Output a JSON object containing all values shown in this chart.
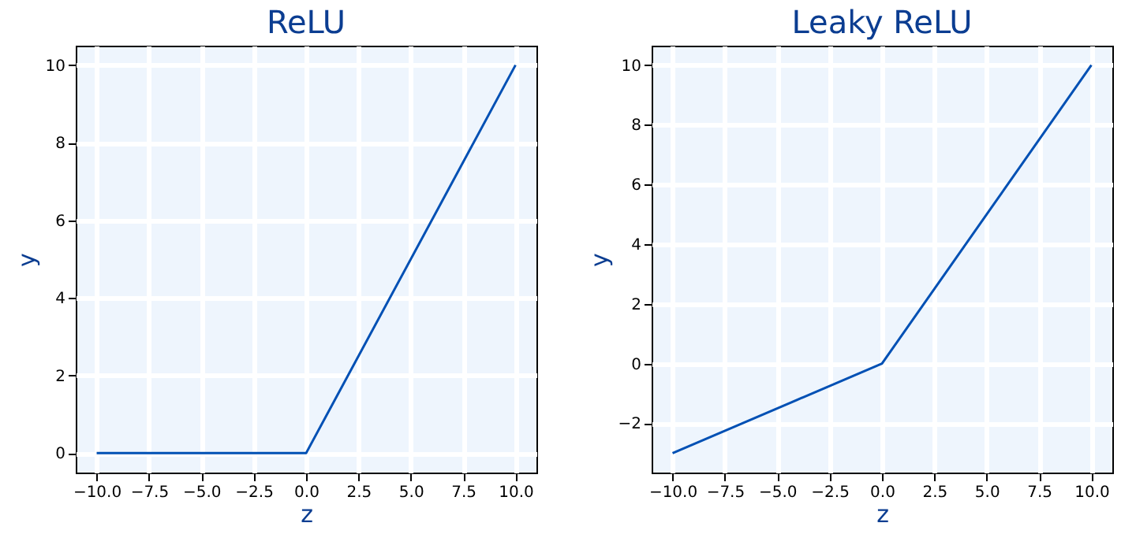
{
  "chart_data": [
    {
      "type": "line",
      "title": "ReLU",
      "xlabel": "z",
      "ylabel": "y",
      "x": [
        -10,
        0,
        10
      ],
      "series": [
        {
          "color": "#0050b4",
          "values": [
            0,
            0,
            10
          ]
        }
      ],
      "xlim": [
        -11,
        11
      ],
      "ylim": [
        -0.5,
        10.5
      ],
      "xticks": [
        {
          "value": -10,
          "label": "−10.0"
        },
        -7.5,
        {
          "value": -5,
          "label": "−5.0"
        },
        -2.5,
        {
          "value": 0,
          "label": "0.0"
        },
        2.5,
        {
          "value": 5,
          "label": "5.0"
        },
        7.5,
        {
          "value": 10,
          "label": "10.0"
        }
      ],
      "yticks": [
        0,
        2,
        4,
        6,
        8,
        10
      ],
      "grid": true
    },
    {
      "type": "line",
      "title": "Leaky ReLU",
      "xlabel": "z",
      "ylabel": "y",
      "x": [
        -10,
        0,
        10
      ],
      "series": [
        {
          "color": "#0050b4",
          "values": [
            -3,
            0,
            10
          ]
        }
      ],
      "xlim": [
        -11,
        11
      ],
      "ylim": [
        -3.65,
        10.65
      ],
      "xticks": [
        {
          "value": -10,
          "label": "−10.0"
        },
        -7.5,
        {
          "value": -5,
          "label": "−5.0"
        },
        -2.5,
        {
          "value": 0,
          "label": "0.0"
        },
        2.5,
        {
          "value": 5,
          "label": "5.0"
        },
        7.5,
        {
          "value": 10,
          "label": "10.0"
        }
      ],
      "yticks": [
        -2,
        0,
        2,
        4,
        6,
        8,
        10
      ],
      "grid": true
    }
  ]
}
